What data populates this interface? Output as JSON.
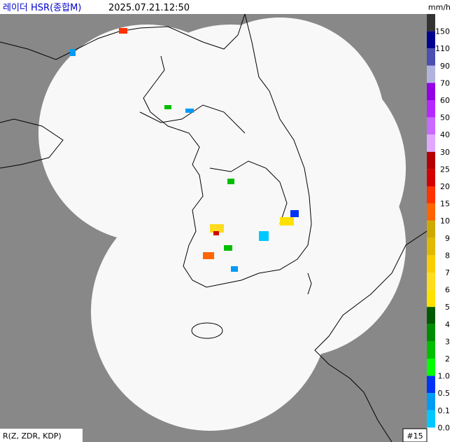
{
  "header": {
    "title": "레이더 HSR(종합M)",
    "time": "2025.07.21.12:50",
    "unit": "mm/h"
  },
  "legend": [
    {
      "label": "150",
      "color": "#333333"
    },
    {
      "label": "110",
      "color": "#000390"
    },
    {
      "label": "90",
      "color": "#4c4eb1"
    },
    {
      "label": "70",
      "color": "#b3b4de"
    },
    {
      "label": "60",
      "color": "#9300e4"
    },
    {
      "label": "50",
      "color": "#b329ff"
    },
    {
      "label": "40",
      "color": "#c969ff"
    },
    {
      "label": "30",
      "color": "#e0a9ff"
    },
    {
      "label": "25",
      "color": "#b40000"
    },
    {
      "label": "20",
      "color": "#d20000"
    },
    {
      "label": "15",
      "color": "#ff3200"
    },
    {
      "label": "10",
      "color": "#ff6600"
    },
    {
      "label": "9",
      "color": "#ccaa00"
    },
    {
      "label": "8",
      "color": "#e0b900"
    },
    {
      "label": "7",
      "color": "#f9cd00"
    },
    {
      "label": "6",
      "color": "#ffdc1f"
    },
    {
      "label": "5",
      "color": "#ffe100"
    },
    {
      "label": "4",
      "color": "#005a00"
    },
    {
      "label": "3",
      "color": "#008c00"
    },
    {
      "label": "2",
      "color": "#00be00"
    },
    {
      "label": "1.0",
      "color": "#00ff00"
    },
    {
      "label": "0.5",
      "color": "#0033f5"
    },
    {
      "label": "0.1",
      "color": "#009bf5"
    },
    {
      "label": "0.0",
      "color": "#00c8ff"
    }
  ],
  "footer": {
    "method": "R(Z, ZDR, KDP)",
    "frame": "#15"
  }
}
